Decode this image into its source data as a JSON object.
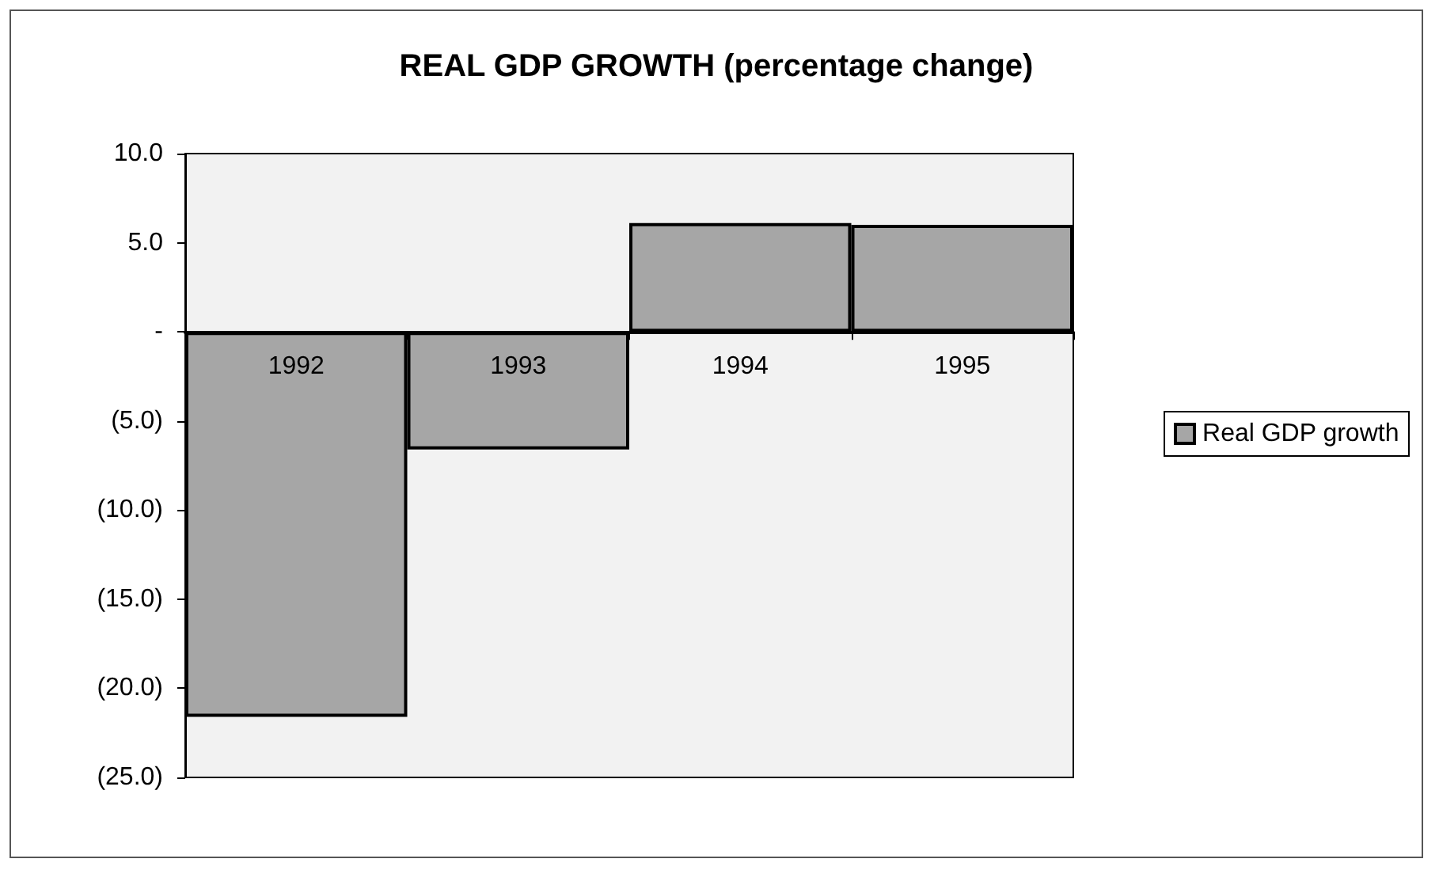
{
  "chart_data": {
    "type": "bar",
    "title": "REAL GDP GROWTH (percentage change)",
    "categories": [
      "1992",
      "1993",
      "1994",
      "1995"
    ],
    "series": [
      {
        "name": "Real GDP growth",
        "color": "#a6a6a6",
        "values": [
          -21.6,
          -6.6,
          6.1,
          6.0
        ]
      }
    ],
    "ylim": [
      -25,
      10
    ],
    "yticks": [
      {
        "value": 10,
        "label": "10.0"
      },
      {
        "value": 5,
        "label": "5.0"
      },
      {
        "value": 0,
        "label": "-"
      },
      {
        "value": -5,
        "label": "(5.0)"
      },
      {
        "value": -10,
        "label": "(10.0)"
      },
      {
        "value": -15,
        "label": "(15.0)"
      },
      {
        "value": -20,
        "label": "(20.0)"
      },
      {
        "value": -25,
        "label": "(25.0)"
      }
    ],
    "grid": false,
    "legend": "right"
  }
}
